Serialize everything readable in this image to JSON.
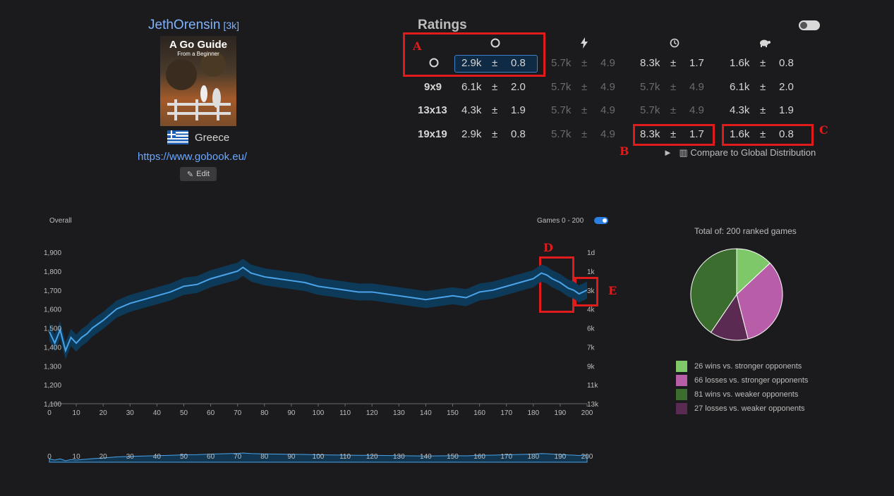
{
  "profile": {
    "username": "JethOrensin",
    "rank": "[3k]",
    "avatar_title": "A Go Guide",
    "avatar_subtitle": "From a Beginner",
    "country": "Greece",
    "website": "https://www.gobook.eu/",
    "edit_label": "Edit"
  },
  "ratings": {
    "title": "Ratings",
    "columns": [
      "overall-icon",
      "blitz-icon",
      "live-icon",
      "correspondence-icon"
    ],
    "rows": [
      {
        "label": "",
        "label_icon": "overall-icon",
        "cells": [
          [
            "2.9k",
            "±",
            "0.8"
          ],
          [
            "5.7k",
            "±",
            "4.9"
          ],
          [
            "8.3k",
            "±",
            "1.7"
          ],
          [
            "1.6k",
            "±",
            "0.8"
          ]
        ]
      },
      {
        "label": "9x9",
        "cells": [
          [
            "6.1k",
            "±",
            "2.0"
          ],
          [
            "5.7k",
            "±",
            "4.9"
          ],
          [
            "5.7k",
            "±",
            "4.9"
          ],
          [
            "6.1k",
            "±",
            "2.0"
          ]
        ]
      },
      {
        "label": "13x13",
        "cells": [
          [
            "4.3k",
            "±",
            "1.9"
          ],
          [
            "5.7k",
            "±",
            "4.9"
          ],
          [
            "5.7k",
            "±",
            "4.9"
          ],
          [
            "4.3k",
            "±",
            "1.9"
          ]
        ]
      },
      {
        "label": "19x19",
        "cells": [
          [
            "2.9k",
            "±",
            "0.8"
          ],
          [
            "5.7k",
            "±",
            "4.9"
          ],
          [
            "8.3k",
            "±",
            "1.7"
          ],
          [
            "1.6k",
            "±",
            "0.8"
          ]
        ]
      }
    ],
    "dim": [
      [
        false,
        true,
        false,
        false
      ],
      [
        false,
        true,
        true,
        false
      ],
      [
        false,
        true,
        true,
        false
      ],
      [
        false,
        true,
        false,
        false
      ]
    ],
    "compare_label": "Compare to Global Distribution"
  },
  "annotations": [
    "A",
    "B",
    "C",
    "D",
    "E"
  ],
  "colors": {
    "accent": "#3b82c9",
    "annotation": "#e01b1b",
    "line": "#4aa3e8",
    "band": "#0e3a5a"
  },
  "chart_data": [
    {
      "type": "line",
      "title": "Overall",
      "range_label": "Games 0 - 200",
      "x_ticks": [
        0,
        10,
        20,
        30,
        40,
        50,
        60,
        70,
        80,
        90,
        100,
        110,
        120,
        130,
        140,
        150,
        160,
        170,
        180,
        190,
        200
      ],
      "y_ticks": [
        1100,
        1200,
        1300,
        1400,
        1500,
        1600,
        1700,
        1800,
        1900
      ],
      "y_tick_labels": [
        "1,100",
        "1,200",
        "1,300",
        "1,400",
        "1,500",
        "1,600",
        "1,700",
        "1,800",
        "1,900"
      ],
      "y2_ticks": [
        "1d",
        "1k",
        "3k",
        "4k",
        "6k",
        "7k",
        "9k",
        "11k",
        "13k"
      ],
      "ylim": [
        1100,
        1900
      ],
      "xlim": [
        0,
        200
      ],
      "grid": false,
      "series": [
        {
          "x": [
            0,
            2,
            4,
            6,
            8,
            10,
            12,
            14,
            16,
            18,
            20,
            25,
            30,
            35,
            40,
            45,
            50,
            55,
            60,
            65,
            70,
            72,
            75,
            80,
            85,
            90,
            95,
            100,
            105,
            110,
            115,
            120,
            125,
            130,
            135,
            140,
            145,
            150,
            155,
            160,
            165,
            170,
            175,
            180,
            183,
            185,
            187,
            190,
            193,
            195,
            197,
            200
          ],
          "y": [
            1480,
            1420,
            1490,
            1380,
            1450,
            1420,
            1450,
            1470,
            1500,
            1520,
            1540,
            1600,
            1630,
            1650,
            1670,
            1690,
            1720,
            1730,
            1760,
            1780,
            1800,
            1820,
            1790,
            1770,
            1760,
            1750,
            1740,
            1720,
            1710,
            1700,
            1690,
            1690,
            1680,
            1670,
            1660,
            1650,
            1660,
            1670,
            1660,
            1690,
            1700,
            1720,
            1740,
            1760,
            1790,
            1780,
            1760,
            1740,
            1710,
            1700,
            1680,
            1700
          ],
          "band": 90
        }
      ]
    },
    {
      "type": "area",
      "x_ticks": [
        0,
        10,
        20,
        30,
        40,
        50,
        60,
        70,
        80,
        90,
        100,
        110,
        120,
        130,
        140,
        150,
        160,
        170,
        180,
        190,
        200
      ],
      "xlim": [
        0,
        200
      ]
    },
    {
      "type": "pie",
      "title": "Total of: 200 ranked games",
      "slices": [
        {
          "label": "26 wins vs. stronger opponents",
          "value": 26,
          "color": "#7ec86a"
        },
        {
          "label": "66 losses vs. stronger opponents",
          "value": 66,
          "color": "#b85ea8"
        },
        {
          "label": "27 losses vs. weaker opponents",
          "value": 27,
          "color": "#5a2a52"
        },
        {
          "label": "81 wins vs. weaker opponents",
          "value": 81,
          "color": "#3b6e2e"
        }
      ],
      "legend": [
        {
          "label": "26 wins vs. stronger opponents",
          "color": "#7ec86a"
        },
        {
          "label": "66 losses vs. stronger opponents",
          "color": "#b85ea8"
        },
        {
          "label": "81 wins vs. weaker opponents",
          "color": "#3b6e2e"
        },
        {
          "label": "27 losses vs. weaker opponents",
          "color": "#5a2a52"
        }
      ]
    }
  ]
}
